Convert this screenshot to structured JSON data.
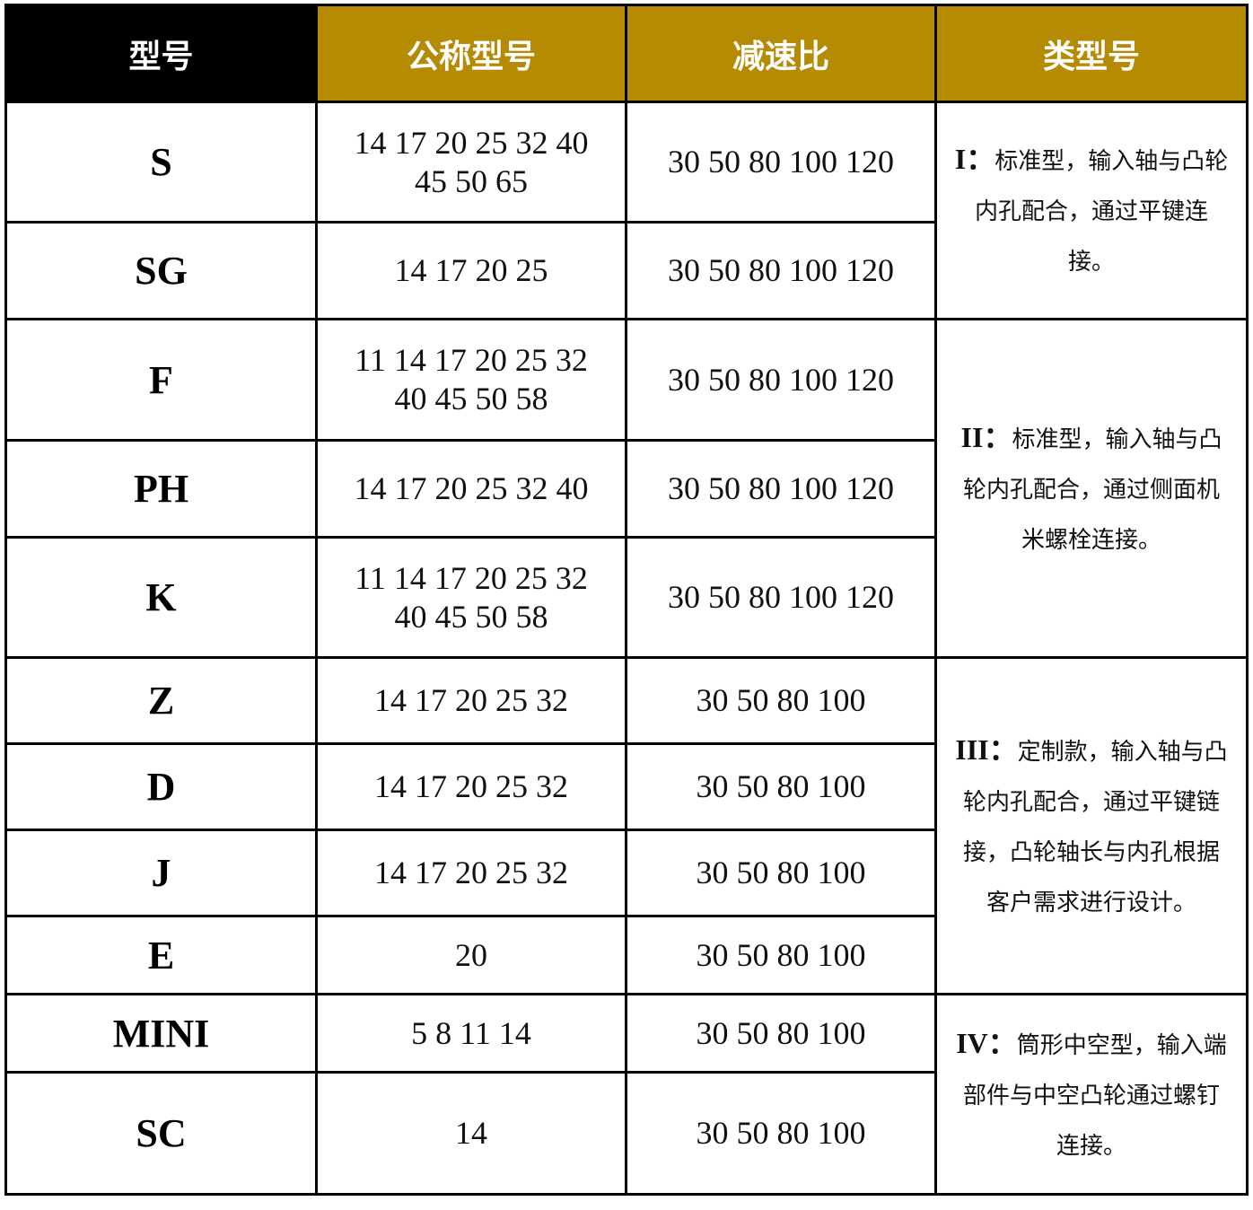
{
  "headers": [
    "型号",
    "公称型号",
    "减速比",
    "类型号"
  ],
  "colors": {
    "header_first": "#000000",
    "header_accent": "#b68b04"
  },
  "rows": [
    {
      "model": "S",
      "sizes": "14 17 20 25 32 40 45 50 65",
      "ratios": "30 50 80 100 120"
    },
    {
      "model": "SG",
      "sizes": "14 17 20 25",
      "ratios": "30 50 80 100 120"
    },
    {
      "model": "F",
      "sizes": "11 14 17 20 25 32 40 45 50 58",
      "ratios": "30 50 80 100 120"
    },
    {
      "model": "PH",
      "sizes": "14 17 20 25 32 40",
      "ratios": "30 50 80 100 120"
    },
    {
      "model": "K",
      "sizes": "11 14 17 20 25 32 40 45 50 58",
      "ratios": "30 50 80 100 120"
    },
    {
      "model": "Z",
      "sizes": "14 17 20 25 32",
      "ratios": "30 50 80 100"
    },
    {
      "model": "D",
      "sizes": "14 17 20 25 32",
      "ratios": "30 50 80 100"
    },
    {
      "model": "J",
      "sizes": "14 17 20 25 32",
      "ratios": "30 50 80 100"
    },
    {
      "model": "E",
      "sizes": "20",
      "ratios": "30 50 80 100"
    },
    {
      "model": "MINI",
      "sizes": "5 8 11 14",
      "ratios": "30 50 80 100"
    },
    {
      "model": "SC",
      "sizes": "14",
      "ratios": "30 50 80 100"
    }
  ],
  "types": [
    {
      "label": "I：",
      "text": "标准型，输入轴与凸轮内孔配合，通过平键连接。"
    },
    {
      "label": "II：",
      "text": "标准型，输入轴与凸轮内孔配合，通过侧面机米螺栓连接。"
    },
    {
      "label": "III：",
      "text": "定制款，输入轴与凸轮内孔配合，通过平键链接，凸轮轴长与内孔根据客户需求进行设计。"
    },
    {
      "label": "IV：",
      "text": "筒形中空型，输入端部件与中空凸轮通过螺钉连接。"
    }
  ]
}
